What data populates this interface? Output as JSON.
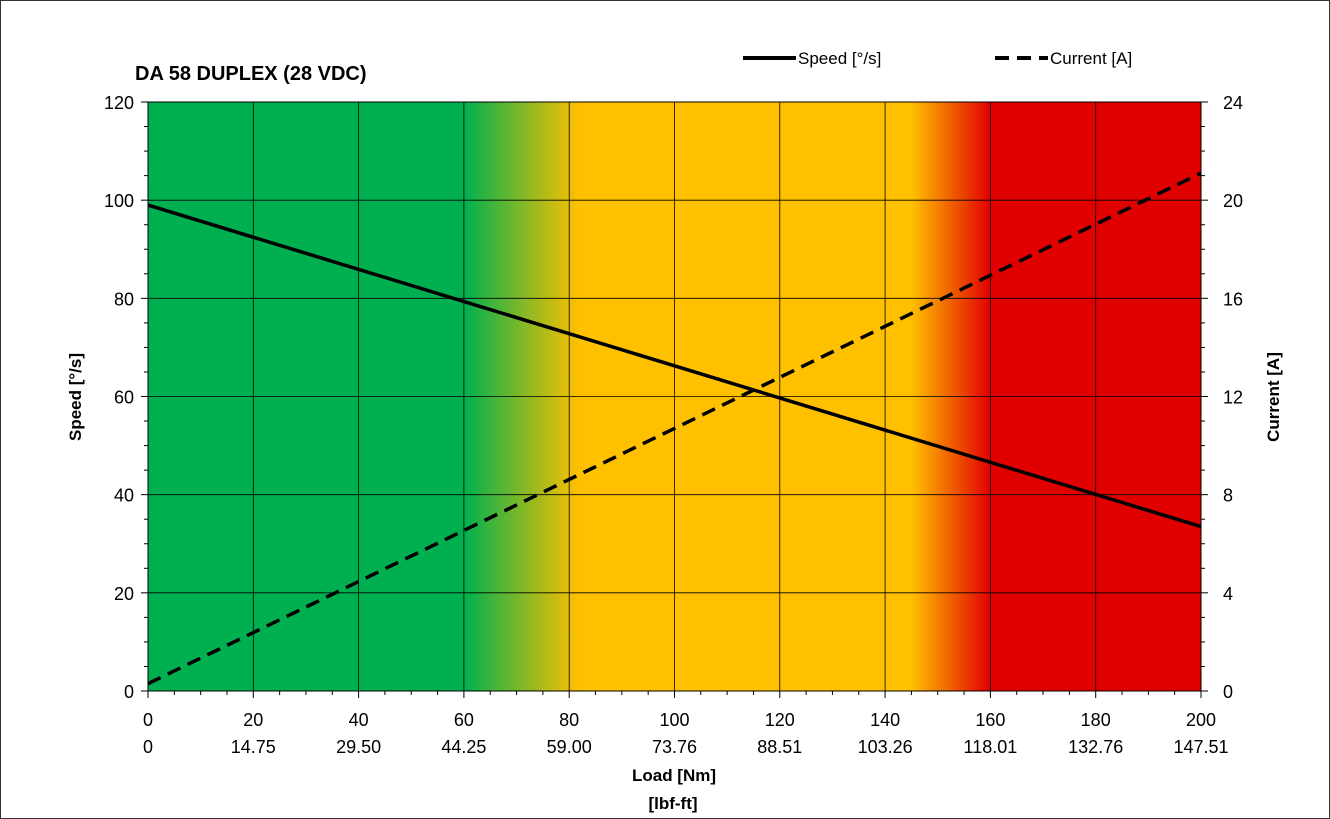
{
  "chart_data": {
    "type": "line",
    "title": "DA 58 DUPLEX (28 VDC)",
    "xlabel": "Load [Nm]",
    "xlabel2": "[lbf-ft]",
    "ylabel": "Speed [°/s]",
    "y2label": "Current [A]",
    "xlim": [
      0,
      200
    ],
    "ylim": [
      0,
      120
    ],
    "y2lim": [
      0,
      24
    ],
    "x_ticks": [
      0,
      20,
      40,
      60,
      80,
      100,
      120,
      140,
      160,
      180,
      200
    ],
    "x_ticks_secondary": [
      "0",
      "14.75",
      "29.50",
      "44.25",
      "59.00",
      "73.76",
      "88.51",
      "103.26",
      "118.01",
      "132.76",
      "147.51"
    ],
    "y_ticks": [
      0,
      20,
      40,
      60,
      80,
      100,
      120
    ],
    "y2_ticks": [
      0,
      4,
      8,
      12,
      16,
      20,
      24
    ],
    "grid": true,
    "legend_position": "top-right",
    "background_zones": [
      {
        "from": 0,
        "to": 60,
        "color": "#00b050"
      },
      {
        "from": 60,
        "to": 82,
        "color_from": "#00b050",
        "color_to": "#ffc000"
      },
      {
        "from": 82,
        "to": 145,
        "color": "#ffc000"
      },
      {
        "from": 145,
        "to": 160,
        "color_from": "#ffc000",
        "color_to": "#e00000"
      },
      {
        "from": 160,
        "to": 200,
        "color": "#e00000"
      }
    ],
    "series": [
      {
        "name": "Speed [°/s]",
        "axis": "left",
        "style": "solid",
        "x": [
          0,
          200
        ],
        "values": [
          99,
          33.5
        ]
      },
      {
        "name": "Current [A]",
        "axis": "right",
        "style": "dashed",
        "x": [
          0,
          200
        ],
        "values": [
          0.3,
          21.1
        ]
      }
    ]
  }
}
